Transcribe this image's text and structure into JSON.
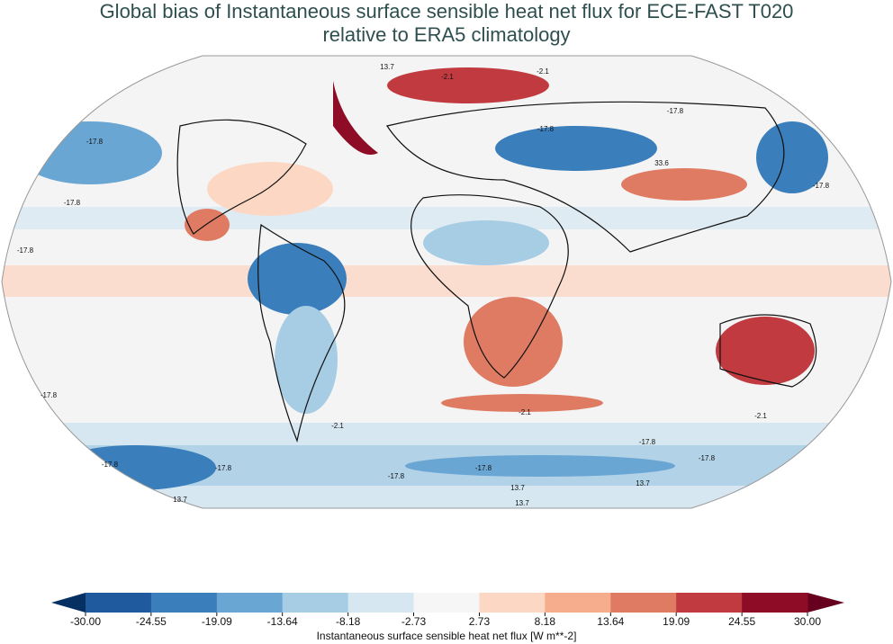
{
  "title": [
    "Global bias of Instantaneous surface sensible heat net flux for ECE-FAST T020",
    "relative to ERA5 climatology"
  ],
  "colorbar": {
    "label": "Instantaneous surface sensible heat net flux [W m**-2]",
    "ticks": [
      {
        "value": -30,
        "label": "-30.00"
      },
      {
        "value": -24.55,
        "label": "-24.55"
      },
      {
        "value": -19.09,
        "label": "-19.09"
      },
      {
        "value": -13.64,
        "label": "-13.64"
      },
      {
        "value": -8.18,
        "label": "-8.18"
      },
      {
        "value": -2.73,
        "label": "-2.73"
      },
      {
        "value": 2.73,
        "label": "2.73"
      },
      {
        "value": 8.18,
        "label": "8.18"
      },
      {
        "value": 13.64,
        "label": "13.64"
      },
      {
        "value": 19.09,
        "label": "19.09"
      },
      {
        "value": 24.55,
        "label": "24.55"
      },
      {
        "value": 30,
        "label": "30.00"
      }
    ],
    "colors": [
      "#1f5a9e",
      "#3a7ebb",
      "#6aa6d3",
      "#a7cde5",
      "#d6e7f1",
      "#f6f6f6",
      "#fbd7c4",
      "#f5ad8d",
      "#e07b63",
      "#c03a3f",
      "#8e0c25"
    ],
    "under_color": "#053061",
    "over_color": "#67001f"
  },
  "contour_labels": [
    -17.8,
    -17.8,
    -17.8,
    13.7,
    -2.1,
    -2.1,
    -17.8,
    -17.8,
    33.6,
    -17.8,
    -17.8,
    -17.8,
    -17.8,
    -2.1,
    -2.1,
    -17.8,
    -17.8,
    -2.1,
    -17.8,
    -17.8,
    13.7,
    13.7,
    13.7,
    13.7
  ]
}
